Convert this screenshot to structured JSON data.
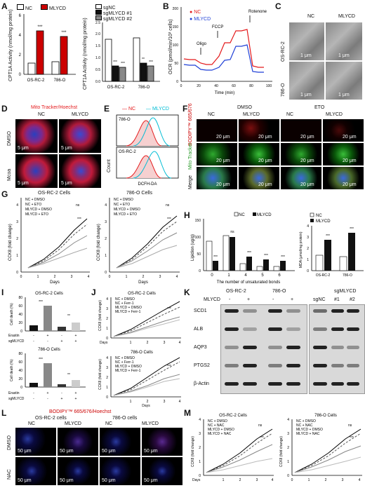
{
  "panel_letters": [
    "A",
    "B",
    "C",
    "D",
    "E",
    "F",
    "G",
    "H",
    "I",
    "J",
    "K",
    "L",
    "M"
  ],
  "colors": {
    "nc": "#e41a1c",
    "mlycd": "#00bcd4",
    "black": "#000000",
    "gray": "#888888",
    "white": "#ffffff"
  },
  "A": {
    "left": {
      "legend": [
        "NC",
        "MLYCD"
      ],
      "ylabel": "CPT1A Activity (nmol/mg protein)",
      "categories": [
        "OS-RC-2",
        "786-O"
      ],
      "yticks": [
        "0",
        "2",
        "4",
        "6"
      ],
      "sig": [
        "***",
        "***"
      ]
    },
    "right": {
      "legend": [
        "sgNC",
        "sgMLYCD #1",
        "sgMLYCD #2"
      ],
      "ylabel": "CPT1A Activity (nmol/mg protein)",
      "categories": [
        "OS-RC-2",
        "786-O"
      ],
      "yticks": [
        "0.0",
        "0.5",
        "1.0",
        "1.5",
        "2.0",
        "2.5"
      ],
      "sig": [
        "***",
        "***",
        "**",
        "***"
      ]
    }
  },
  "B": {
    "legend": [
      "NC",
      "MLYCD"
    ],
    "ylabel": "OCR (pmol/min/10³ cells)",
    "xlabel": "Time (min)",
    "xticks": [
      "0",
      "20",
      "40",
      "60",
      "80",
      "100"
    ],
    "yticks": [
      "0",
      "50",
      "100",
      "150",
      "200"
    ],
    "annotations": [
      "Oligo",
      "FCCP",
      "Rotenone"
    ]
  },
  "C": {
    "cols": [
      "NC",
      "MLYCD"
    ],
    "rows": [
      "OS-RC-2",
      "786-O"
    ],
    "scale": "1 μm"
  },
  "D": {
    "title": "Mito Tracker/Hoechst",
    "cols": [
      "NC",
      "MLYCD"
    ],
    "rows": [
      "DMSO",
      "Mcoa"
    ],
    "scale": "5 μm"
  },
  "E": {
    "legend": [
      "NC",
      "MLYCD"
    ],
    "rows": [
      "786-O",
      "OS-RC-2"
    ],
    "ylabel": "Count",
    "xlabel": "DCFH-DA"
  },
  "F": {
    "groups": [
      "DMSO",
      "ETO"
    ],
    "cols": [
      "NC",
      "MLYCD",
      "NC",
      "MLYCD"
    ],
    "rows": [
      "BODIPY™ 665/676",
      "Mito Tracker",
      "Merge"
    ],
    "scale": "20 μm"
  },
  "G": {
    "titles": [
      "OS-RC-2 Cells",
      "786-O Cells"
    ],
    "legend": [
      "NC + DMSO",
      "NC + ETO",
      "MLYCD + DMSO",
      "MLYCD + ETO"
    ],
    "ylabel": "CCK8 (fold change)",
    "xlabel": "Days",
    "xticks": [
      "0",
      "1",
      "2",
      "3",
      "4"
    ],
    "yticks": [
      "0",
      "1",
      "2",
      "3",
      "4"
    ],
    "ns": "ns",
    "sig": "***"
  },
  "H": {
    "left": {
      "legend": [
        "NC",
        "MLYCD"
      ],
      "ylabel": "Lipidion (ug/g)",
      "xlabel": "The number of unsaturated bonds",
      "categories": [
        "0",
        "1",
        "4",
        "5",
        "6"
      ],
      "yticks": [
        "0",
        "50",
        "100",
        "150"
      ],
      "sig": [
        "***",
        "ns",
        "***",
        "***",
        "***"
      ]
    },
    "right": {
      "legend": [
        "NC",
        "MLYCD"
      ],
      "ylabel": "MDA (μmol/mg protein)",
      "categories": [
        "OS-RC-2",
        "786-O"
      ],
      "yticks": [
        "0",
        "1",
        "2",
        "3",
        "4"
      ],
      "sig": [
        "***",
        "***"
      ]
    }
  },
  "I": {
    "titles": [
      "OS-RC-2 Cells",
      "786-O Cells"
    ],
    "ylabel": "Cell death (%)",
    "yticks_top": [
      "0",
      "20",
      "40",
      "60",
      "80"
    ],
    "yticks_bottom": [
      "0",
      "20",
      "40",
      "60",
      "80"
    ],
    "rowlabels": [
      "Erastin",
      "sgMLYCD"
    ],
    "signs": [
      "-",
      "+",
      "-",
      "+"
    ],
    "signs2": [
      "-",
      "-",
      "+",
      "+"
    ],
    "sig": [
      "***",
      "**"
    ]
  },
  "J": {
    "titles": [
      "OS-RC-2 Cells",
      "786-O Cells"
    ],
    "legend": [
      "NC + DMSO",
      "NC + Ferr-1",
      "MLYCD + DMSO",
      "MLYCD + Ferr-1"
    ],
    "ylabel": "CCK8 (fold change)",
    "xlabel": "Days",
    "xticks": [
      "0",
      "1",
      "2",
      "3",
      "4"
    ],
    "yticks": [
      "0",
      "1",
      "2",
      "3",
      "4"
    ],
    "sig": "***"
  },
  "K": {
    "cells": [
      "OS-RC-2",
      "786-O"
    ],
    "row_label": "MLYCD",
    "signs": [
      "-",
      "+",
      "-",
      "+"
    ],
    "sg": [
      "sgNC",
      "sgMLYCD",
      "#1",
      "#2"
    ],
    "proteins": [
      "SCD1",
      "ALB",
      "AQP3",
      "PTGS2",
      "β-Actin"
    ]
  },
  "L": {
    "title": "BODIPY™ 665/676/Hoechst",
    "cells": [
      "OS-RC-2 cells",
      "786-O cells"
    ],
    "cols": [
      "NC",
      "MLYCD",
      "NC",
      "MLYCD"
    ],
    "rows": [
      "DMSO",
      "NAC"
    ],
    "scale": "50 μm"
  },
  "M": {
    "titles": [
      "OS-RC-2 Cells",
      "786-O Cells"
    ],
    "legend": [
      "NC + DMSO",
      "NC + NAC",
      "MLYCD + DMSO",
      "MLYCD + NAC"
    ],
    "ylabel": "CCK8 (fold change)",
    "xlabel": "Days",
    "xticks": [
      "0",
      "1",
      "2",
      "3",
      "4"
    ],
    "yticks": [
      "0",
      "1",
      "2",
      "3",
      "4"
    ],
    "ns": "ns",
    "sig": "***"
  }
}
